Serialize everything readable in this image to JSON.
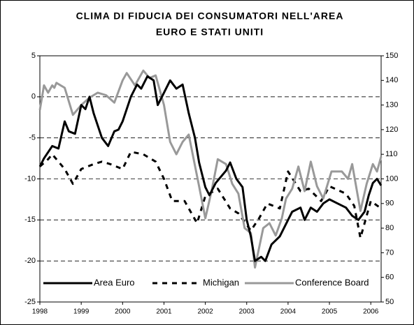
{
  "chart_data": {
    "type": "line",
    "title": [
      "CLIMA DI FIDUCIA DEI CONSUMATORI NELL'AREA",
      "EURO E STATI UNITI"
    ],
    "xlim": [
      1998,
      2006.25
    ],
    "xticks": [
      1998,
      1999,
      2000,
      2001,
      2002,
      2003,
      2004,
      2005,
      2006
    ],
    "ylim": [
      -25,
      5
    ],
    "yticks": [
      5,
      0,
      -5,
      -10,
      -15,
      -20,
      -25
    ],
    "y2lim": [
      50,
      150
    ],
    "y2ticks": [
      150,
      140,
      130,
      120,
      110,
      100,
      90,
      80,
      70,
      60,
      50
    ],
    "grid": true,
    "legend": "bottom",
    "series": [
      {
        "name": "Area Euro",
        "color": "#000000",
        "dash": "solid",
        "axis": "y",
        "x": [
          1998,
          1998.1,
          1998.3,
          1998.45,
          1998.6,
          1998.7,
          1998.85,
          1999.0,
          1999.1,
          1999.2,
          1999.3,
          1999.5,
          1999.65,
          1999.8,
          1999.9,
          2000.0,
          2000.2,
          2000.35,
          2000.45,
          2000.6,
          2000.75,
          2000.85,
          2001.0,
          2001.15,
          2001.3,
          2001.45,
          2001.6,
          2001.75,
          2001.85,
          2002.0,
          2002.1,
          2002.25,
          2002.5,
          2002.6,
          2002.75,
          2002.9,
          2003.0,
          2003.1,
          2003.2,
          2003.35,
          2003.45,
          2003.6,
          2003.8,
          2004.0,
          2004.1,
          2004.3,
          2004.4,
          2004.55,
          2004.7,
          2004.85,
          2005.0,
          2005.2,
          2005.4,
          2005.55,
          2005.7,
          2005.85,
          2005.95,
          2006.05,
          2006.15,
          2006.25
        ],
        "values": [
          -8.5,
          -7.5,
          -6,
          -6.3,
          -3,
          -4.2,
          -4.5,
          -1,
          -1.5,
          0,
          -2,
          -5,
          -6,
          -4.2,
          -4,
          -3,
          0,
          1.5,
          1,
          2.5,
          2,
          -1,
          0.5,
          2,
          1,
          1.5,
          -2,
          -5,
          -8,
          -11,
          -12,
          -10.5,
          -9,
          -8,
          -10,
          -11,
          -15,
          -17,
          -20,
          -19.5,
          -20,
          -18,
          -17,
          -15,
          -14,
          -13.5,
          -15,
          -13.5,
          -14,
          -13,
          -12.5,
          -13,
          -13.5,
          -14.5,
          -15,
          -14,
          -12,
          -10.5,
          -10,
          -10.8
        ]
      },
      {
        "name": "Michigan",
        "color": "#000000",
        "dash": "dashed",
        "axis": "y2",
        "x": [
          1998,
          1998.2,
          1998.3,
          1998.6,
          1998.8,
          1999.0,
          1999.3,
          1999.5,
          1999.7,
          2000.0,
          2000.2,
          2000.5,
          2000.8,
          2001.0,
          2001.2,
          2001.5,
          2001.8,
          2002.0,
          2002.3,
          2002.6,
          2002.8,
          2003.1,
          2003.3,
          2003.5,
          2003.8,
          2004.0,
          2004.3,
          2004.5,
          2004.8,
          2005.0,
          2005.4,
          2005.6,
          2005.75,
          2006.0,
          2006.25
        ],
        "values": [
          105,
          108,
          110,
          104,
          98,
          104,
          106,
          107,
          106,
          104,
          111,
          110,
          107,
          100,
          91,
          91,
          82,
          93,
          96,
          88,
          86,
          79,
          84,
          90,
          88,
          103,
          95,
          96,
          91,
          97,
          94,
          89,
          76,
          91,
          88
        ]
      },
      {
        "name": "Conference Board",
        "color": "#999999",
        "dash": "solid",
        "axis": "y2",
        "x": [
          1998,
          1998.1,
          1998.2,
          1998.3,
          1998.35,
          1998.4,
          1998.6,
          1998.8,
          1999.0,
          1999.2,
          1999.4,
          1999.6,
          1999.8,
          2000.0,
          2000.1,
          2000.3,
          2000.5,
          2000.65,
          2000.8,
          2001.0,
          2001.15,
          2001.3,
          2001.45,
          2001.6,
          2001.85,
          2002.0,
          2002.15,
          2002.3,
          2002.5,
          2002.65,
          2002.8,
          2002.95,
          2003.1,
          2003.2,
          2003.4,
          2003.55,
          2003.7,
          2003.85,
          2003.95,
          2004.1,
          2004.25,
          2004.4,
          2004.55,
          2004.7,
          2004.85,
          2005.05,
          2005.3,
          2005.45,
          2005.55,
          2005.75,
          2005.9,
          2006.05,
          2006.15,
          2006.25
        ],
        "values": [
          128,
          138,
          135,
          138,
          137,
          139,
          137,
          126,
          130,
          133,
          135,
          134,
          131,
          140,
          143,
          138,
          144,
          141,
          142,
          130,
          115,
          110,
          115,
          118,
          97,
          84,
          95,
          108,
          106,
          98,
          94,
          80,
          78,
          64,
          80,
          82,
          77,
          84,
          92,
          96,
          105,
          95,
          107,
          97,
          92,
          103,
          103,
          100,
          106,
          87,
          98,
          106,
          103,
          109
        ]
      }
    ]
  }
}
